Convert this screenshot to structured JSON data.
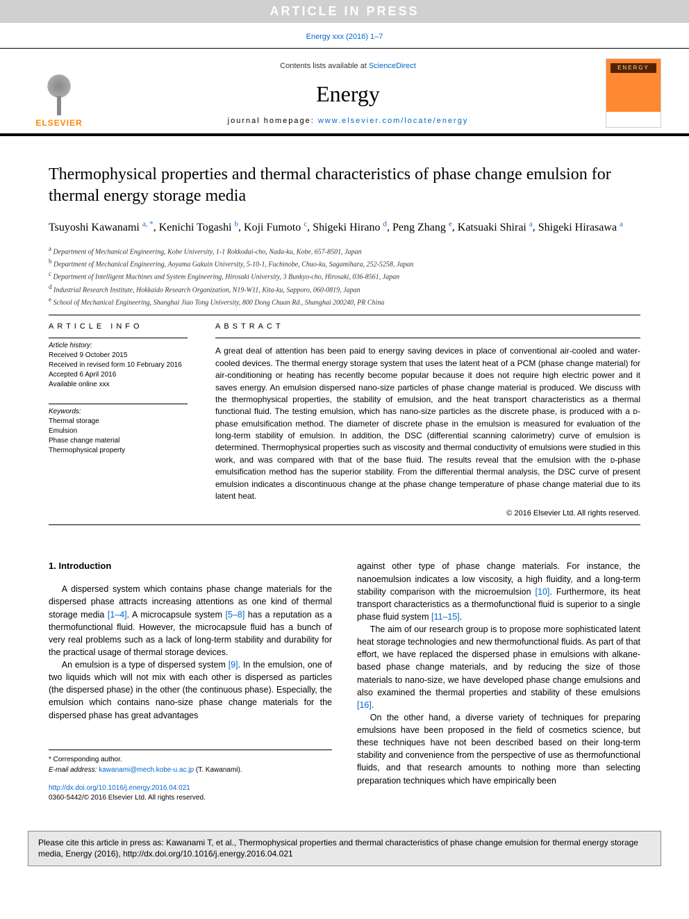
{
  "banner": "ARTICLE IN PRESS",
  "top_citation": "Energy xxx (2016) 1–7",
  "header": {
    "contents_prefix": "Contents lists available at ",
    "contents_link": "ScienceDirect",
    "journal": "Energy",
    "homepage_prefix": "journal homepage: ",
    "homepage_link": "www.elsevier.com/locate/energy",
    "publisher": "ELSEVIER",
    "cover_label": "ENERGY"
  },
  "title": "Thermophysical properties and thermal characteristics of phase change emulsion for thermal energy storage media",
  "authors": [
    {
      "name": "Tsuyoshi Kawanami",
      "marks": "a, *"
    },
    {
      "name": "Kenichi Togashi",
      "marks": "b"
    },
    {
      "name": "Koji Fumoto",
      "marks": "c"
    },
    {
      "name": "Shigeki Hirano",
      "marks": "d"
    },
    {
      "name": "Peng Zhang",
      "marks": "e"
    },
    {
      "name": "Katsuaki Shirai",
      "marks": "a"
    },
    {
      "name": "Shigeki Hirasawa",
      "marks": "a"
    }
  ],
  "affiliations": [
    {
      "mark": "a",
      "text": "Department of Mechanical Engineering, Kobe University, 1-1 Rokkodai-cho, Nada-ku, Kobe, 657-8501, Japan"
    },
    {
      "mark": "b",
      "text": "Department of Mechanical Engineering, Aoyama Gakuin University, 5-10-1, Fuchinobe, Chuo-ku, Sagamihara, 252-5258, Japan"
    },
    {
      "mark": "c",
      "text": "Department of Intelligent Machines and System Engineering, Hirosaki University, 3 Bunkyo-cho, Hirosaki, 036-8561, Japan"
    },
    {
      "mark": "d",
      "text": "Industrial Research Institute, Hokkaido Research Organization, N19-W11, Kita-ku, Sapporo, 060-0819, Japan"
    },
    {
      "mark": "e",
      "text": "School of Mechanical Engineering, Shanghai Jiao Tong University, 800 Dong Chuan Rd., Shanghai 200240, PR China"
    }
  ],
  "article_info": {
    "heading": "ARTICLE INFO",
    "history_label": "Article history:",
    "received": "Received 9 October 2015",
    "revised": "Received in revised form 10 February 2016",
    "accepted": "Accepted 6 April 2016",
    "online": "Available online xxx",
    "keywords_label": "Keywords:",
    "keywords": [
      "Thermal storage",
      "Emulsion",
      "Phase change material",
      "Thermophysical property"
    ]
  },
  "abstract": {
    "heading": "ABSTRACT",
    "text": "A great deal of attention has been paid to energy saving devices in place of conventional air-cooled and water-cooled devices. The thermal energy storage system that uses the latent heat of a PCM (phase change material) for air-conditioning or heating has recently become popular because it does not require high electric power and it saves energy. An emulsion dispersed nano-size particles of phase change material is produced. We discuss with the thermophysical properties, the stability of emulsion, and the heat transport characteristics as a thermal functional fluid. The testing emulsion, which has nano-size particles as the discrete phase, is produced with a ᴅ-phase emulsification method. The diameter of discrete phase in the emulsion is measured for evaluation of the long-term stability of emulsion. In addition, the DSC (differential scanning calorimetry) curve of emulsion is determined. Thermophysical properties such as viscosity and thermal conductivity of emulsions were studied in this work, and was compared with that of the base fluid. The results reveal that the emulsion with the ᴅ-phase emulsification method has the superior stability. From the differential thermal analysis, the DSC curve of present emulsion indicates a discontinuous change at the phase change temperature of phase change material due to its latent heat.",
    "copyright": "© 2016 Elsevier Ltd. All rights reserved."
  },
  "body": {
    "section_number": "1.",
    "section_title": "Introduction",
    "left": {
      "p1a": "A dispersed system which contains phase change materials for the dispersed phase attracts increasing attentions as one kind of thermal storage media ",
      "p1_ref1": "[1–4]",
      "p1b": ". A microcapsule system ",
      "p1_ref2": "[5–8]",
      "p1c": " has a reputation as a thermofunctional fluid. However, the microcapsule fluid has a bunch of very real problems such as a lack of long-term stability and durability for the practical usage of thermal storage devices.",
      "p2a": "An emulsion is a type of dispersed system ",
      "p2_ref1": "[9]",
      "p2b": ". In the emulsion, one of two liquids which will not mix with each other is dispersed as particles (the dispersed phase) in the other (the continuous phase). Especially, the emulsion which contains nano-size phase change materials for the dispersed phase has great advantages"
    },
    "right": {
      "p1a": "against other type of phase change materials. For instance, the nanoemulsion indicates a low viscosity, a high fluidity, and a long-term stability comparison with the microemulsion ",
      "p1_ref1": "[10]",
      "p1b": ". Furthermore, its heat transport characteristics as a thermofunctional fluid is superior to a single phase fluid system ",
      "p1_ref2": "[11–15]",
      "p1c": ".",
      "p2a": "The aim of our research group is to propose more sophisticated latent heat storage technologies and new thermofunctional fluids. As part of that effort, we have replaced the dispersed phase in emulsions with alkane-based phase change materials, and by reducing the size of those materials to nano-size, we have developed phase change emulsions and also examined the thermal properties and stability of these emulsions ",
      "p2_ref1": "[16]",
      "p2b": ".",
      "p3": "On the other hand, a diverse variety of techniques for preparing emulsions have been proposed in the field of cosmetics science, but these techniques have not been described based on their long-term stability and convenience from the perspective of use as thermofunctional fluids, and that research amounts to nothing more than selecting preparation techniques which have empirically been"
    }
  },
  "corresponding": {
    "star": "* Corresponding author.",
    "email_label": "E-mail address: ",
    "email": "kawanami@mech.kobe-u.ac.jp",
    "email_suffix": " (T. Kawanami)."
  },
  "doi": {
    "link": "http://dx.doi.org/10.1016/j.energy.2016.04.021",
    "issn": "0360-5442/© 2016 Elsevier Ltd. All rights reserved."
  },
  "cite_box": "Please cite this article in press as: Kawanami T, et al., Thermophysical properties and thermal characteristics of phase change emulsion for thermal energy storage media, Energy (2016), http://dx.doi.org/10.1016/j.energy.2016.04.021",
  "colors": {
    "link": "#0066cc",
    "banner_bg": "#d0d0d0",
    "banner_fg": "#ffffff",
    "cover_bg": "#ff8833",
    "elsevier": "#ff8800",
    "citebox_bg": "#e8e8e8"
  }
}
